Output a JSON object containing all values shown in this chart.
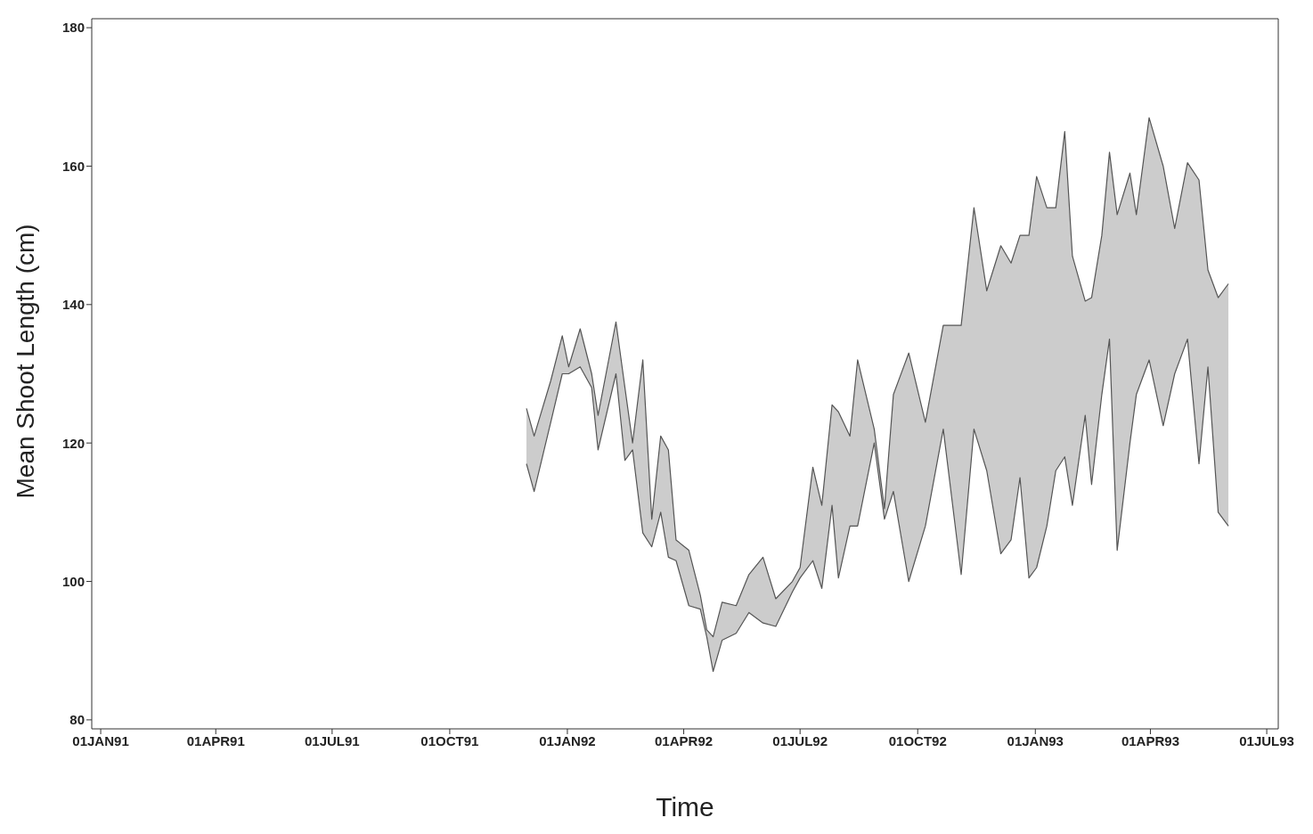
{
  "chart_data": {
    "type": "area",
    "xlabel": "Time",
    "ylabel": "Mean Shoot Length (cm)",
    "xlim": [
      "1990-12-25",
      "1993-07-10"
    ],
    "ylim": [
      78.7,
      181.3
    ],
    "xticks": [
      {
        "value": "1991-01-01",
        "label": "01JAN91"
      },
      {
        "value": "1991-04-01",
        "label": "01APR91"
      },
      {
        "value": "1991-07-01",
        "label": "01JUL91"
      },
      {
        "value": "1991-10-01",
        "label": "01OCT91"
      },
      {
        "value": "1992-01-01",
        "label": "01JAN92"
      },
      {
        "value": "1992-04-01",
        "label": "01APR92"
      },
      {
        "value": "1992-07-01",
        "label": "01JUL92"
      },
      {
        "value": "1992-10-01",
        "label": "01OCT92"
      },
      {
        "value": "1993-01-01",
        "label": "01JAN93"
      },
      {
        "value": "1993-04-01",
        "label": "01APR93"
      },
      {
        "value": "1993-07-01",
        "label": "01JUL93"
      }
    ],
    "yticks": [
      80,
      100,
      120,
      140,
      160,
      180
    ],
    "x": [
      "1991-11-30",
      "1991-12-06",
      "1991-12-19",
      "1991-12-28",
      "1992-01-02",
      "1992-01-11",
      "1992-01-20",
      "1992-01-25",
      "1992-02-08",
      "1992-02-15",
      "1992-02-21",
      "1992-02-29",
      "1992-03-07",
      "1992-03-14",
      "1992-03-20",
      "1992-03-26",
      "1992-04-05",
      "1992-04-14",
      "1992-04-19",
      "1992-04-24",
      "1992-05-01",
      "1992-05-12",
      "1992-05-22",
      "1992-06-02",
      "1992-06-12",
      "1992-06-25",
      "1992-07-01",
      "1992-07-11",
      "1992-07-18",
      "1992-07-26",
      "1992-07-31",
      "1992-08-09",
      "1992-08-15",
      "1992-08-28",
      "1992-09-05",
      "1992-09-12",
      "1992-09-24",
      "1992-10-07",
      "1992-10-21",
      "1992-11-04",
      "1992-11-14",
      "1992-11-24",
      "1992-12-05",
      "1992-12-13",
      "1992-12-20",
      "1992-12-27",
      "1993-01-02",
      "1993-01-10",
      "1993-01-17",
      "1993-01-24",
      "1993-01-30",
      "1993-02-09",
      "1993-02-14",
      "1993-02-22",
      "1993-02-28",
      "1993-03-06",
      "1993-03-16",
      "1993-03-21",
      "1993-03-31",
      "1993-04-11",
      "1993-04-20",
      "1993-04-30",
      "1993-05-09",
      "1993-05-16",
      "1993-05-24",
      "1993-06-01"
    ],
    "series": [
      {
        "color": "#555555",
        "values": [
          125,
          121,
          129,
          135.5,
          131,
          136.5,
          130,
          124,
          137.5,
          128,
          120,
          132,
          109,
          121,
          119,
          106,
          104.5,
          98,
          93,
          92,
          97,
          96.5,
          101,
          103.5,
          97.5,
          100,
          102,
          116.5,
          111,
          125.5,
          124.5,
          121,
          132,
          122,
          110.5,
          127,
          133,
          123,
          137,
          137,
          154,
          142,
          148.5,
          146,
          150,
          150,
          158.5,
          154,
          154,
          165,
          147,
          140.5,
          141,
          150,
          162,
          153,
          159,
          153,
          167,
          160,
          151,
          160.5,
          158,
          145,
          141,
          143
        ]
      },
      {
        "type": "line",
        "color": "#555555",
        "values": [
          117,
          113,
          123,
          130,
          130,
          131,
          128,
          119,
          130,
          117.5,
          119,
          107,
          105,
          110,
          103.5,
          103,
          96.5,
          96,
          92,
          87,
          91.5,
          92.5,
          95.5,
          94,
          93.5,
          98.5,
          100.5,
          103,
          99,
          111,
          100.5,
          108,
          108,
          120,
          109,
          113,
          100,
          108,
          122,
          101,
          122,
          116,
          104,
          106,
          115,
          100.5,
          102,
          108,
          116,
          118,
          111,
          124,
          114,
          127,
          135,
          104.5,
          120,
          127,
          132,
          122.5,
          130,
          135,
          117,
          131,
          110,
          108
        ]
      }
    ]
  }
}
